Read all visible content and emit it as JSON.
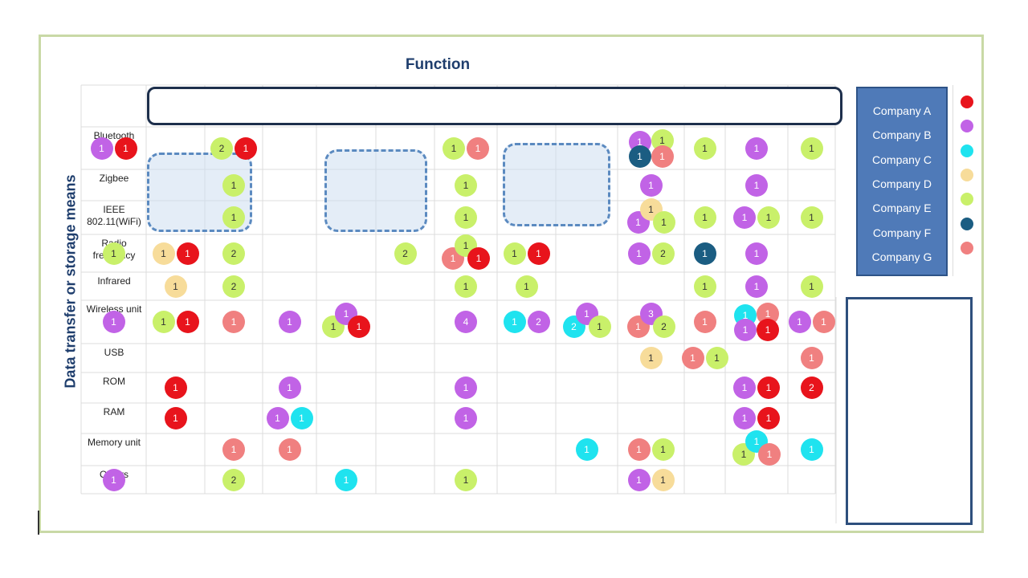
{
  "title": "Function",
  "y_axis_label": "Data transfer or storage means",
  "rows": [
    "Bluetooth",
    "Zigbee",
    "IEEE 802.11(WiFi)",
    "Radio frequency",
    "Infrared",
    "Wireless unit",
    "USB",
    "ROM",
    "RAM",
    "Memory unit",
    "Others"
  ],
  "legend": [
    {
      "label": "Company A",
      "color": "#e8141c"
    },
    {
      "label": "Company B",
      "color": "#c163e6"
    },
    {
      "label": "Company C",
      "color": "#1fe3ef"
    },
    {
      "label": "Company D",
      "color": "#f7dc9a"
    },
    {
      "label": "Company E",
      "color": "#c9f06a"
    },
    {
      "label": "Company F",
      "color": "#1b5d82"
    },
    {
      "label": "Company G",
      "color": "#f08080"
    }
  ],
  "bubbles": [
    {
      "row": "Bluetooth",
      "col": 1,
      "company": "B",
      "count": "1"
    },
    {
      "row": "Bluetooth",
      "col": 1,
      "company": "A",
      "count": "1"
    },
    {
      "row": "Bluetooth",
      "col": 3,
      "company": "E",
      "count": "2"
    },
    {
      "row": "Bluetooth",
      "col": 3,
      "company": "A",
      "count": "1"
    },
    {
      "row": "Bluetooth",
      "col": 7,
      "company": "E",
      "count": "1"
    },
    {
      "row": "Bluetooth",
      "col": 7,
      "company": "G",
      "count": "1"
    },
    {
      "row": "Bluetooth",
      "col": 10,
      "company": "B",
      "count": "1"
    },
    {
      "row": "Bluetooth",
      "col": 10,
      "company": "E",
      "count": "1"
    },
    {
      "row": "Bluetooth",
      "col": 10,
      "company": "F",
      "count": "1"
    },
    {
      "row": "Bluetooth",
      "col": 10,
      "company": "G",
      "count": "1"
    },
    {
      "row": "Bluetooth",
      "col": 11,
      "company": "E",
      "count": "1"
    },
    {
      "row": "Bluetooth",
      "col": 12,
      "company": "B",
      "count": "1"
    },
    {
      "row": "Bluetooth",
      "col": 13,
      "company": "E",
      "count": "1"
    },
    {
      "row": "Zigbee",
      "col": 3,
      "company": "E",
      "count": "1"
    },
    {
      "row": "Zigbee",
      "col": 7,
      "company": "E",
      "count": "1"
    },
    {
      "row": "Zigbee",
      "col": 10,
      "company": "B",
      "count": "1"
    },
    {
      "row": "Zigbee",
      "col": 12,
      "company": "B",
      "count": "1"
    },
    {
      "row": "IEEE 802.11(WiFi)",
      "col": 3,
      "company": "E",
      "count": "1"
    },
    {
      "row": "IEEE 802.11(WiFi)",
      "col": 7,
      "company": "E",
      "count": "1"
    },
    {
      "row": "IEEE 802.11(WiFi)",
      "col": 10,
      "company": "B",
      "count": "1"
    },
    {
      "row": "IEEE 802.11(WiFi)",
      "col": 10,
      "company": "D",
      "count": "1"
    },
    {
      "row": "IEEE 802.11(WiFi)",
      "col": 10,
      "company": "E",
      "count": "1"
    },
    {
      "row": "IEEE 802.11(WiFi)",
      "col": 11,
      "company": "E",
      "count": "1"
    },
    {
      "row": "IEEE 802.11(WiFi)",
      "col": 12,
      "company": "B",
      "count": "1"
    },
    {
      "row": "IEEE 802.11(WiFi)",
      "col": 12,
      "company": "E",
      "count": "1"
    },
    {
      "row": "IEEE 802.11(WiFi)",
      "col": 13,
      "company": "E",
      "count": "1"
    },
    {
      "row": "Radio frequency",
      "col": 1,
      "company": "E",
      "count": "1"
    },
    {
      "row": "Radio frequency",
      "col": 2,
      "company": "D",
      "count": "1"
    },
    {
      "row": "Radio frequency",
      "col": 2,
      "company": "A",
      "count": "1"
    },
    {
      "row": "Radio frequency",
      "col": 3,
      "company": "E",
      "count": "2"
    },
    {
      "row": "Radio frequency",
      "col": 6,
      "company": "E",
      "count": "2"
    },
    {
      "row": "Radio frequency",
      "col": 7,
      "company": "G",
      "count": "1"
    },
    {
      "row": "Radio frequency",
      "col": 7,
      "company": "E",
      "count": "1"
    },
    {
      "row": "Radio frequency",
      "col": 7,
      "company": "A",
      "count": "1"
    },
    {
      "row": "Radio frequency",
      "col": 8,
      "company": "E",
      "count": "1"
    },
    {
      "row": "Radio frequency",
      "col": 8,
      "company": "A",
      "count": "1"
    },
    {
      "row": "Radio frequency",
      "col": 10,
      "company": "B",
      "count": "1"
    },
    {
      "row": "Radio frequency",
      "col": 10,
      "company": "E",
      "count": "2"
    },
    {
      "row": "Radio frequency",
      "col": 11,
      "company": "F",
      "count": "1"
    },
    {
      "row": "Radio frequency",
      "col": 12,
      "company": "B",
      "count": "1"
    },
    {
      "row": "Infrared",
      "col": 2,
      "company": "D",
      "count": "1"
    },
    {
      "row": "Infrared",
      "col": 3,
      "company": "E",
      "count": "2"
    },
    {
      "row": "Infrared",
      "col": 7,
      "company": "E",
      "count": "1"
    },
    {
      "row": "Infrared",
      "col": 8,
      "company": "E",
      "count": "1"
    },
    {
      "row": "Infrared",
      "col": 11,
      "company": "E",
      "count": "1"
    },
    {
      "row": "Infrared",
      "col": 12,
      "company": "B",
      "count": "1"
    },
    {
      "row": "Infrared",
      "col": 13,
      "company": "E",
      "count": "1"
    },
    {
      "row": "Wireless unit",
      "col": 1,
      "company": "B",
      "count": "1"
    },
    {
      "row": "Wireless unit",
      "col": 2,
      "company": "E",
      "count": "1"
    },
    {
      "row": "Wireless unit",
      "col": 2,
      "company": "A",
      "count": "1"
    },
    {
      "row": "Wireless unit",
      "col": 3,
      "company": "G",
      "count": "1"
    },
    {
      "row": "Wireless unit",
      "col": 4,
      "company": "B",
      "count": "1"
    },
    {
      "row": "Wireless unit",
      "col": 5,
      "company": "E",
      "count": "1"
    },
    {
      "row": "Wireless unit",
      "col": 5,
      "company": "B",
      "count": "1"
    },
    {
      "row": "Wireless unit",
      "col": 5,
      "company": "A",
      "count": "1"
    },
    {
      "row": "Wireless unit",
      "col": 7,
      "company": "B",
      "count": "4"
    },
    {
      "row": "Wireless unit",
      "col": 8,
      "company": "C",
      "count": "1"
    },
    {
      "row": "Wireless unit",
      "col": 8,
      "company": "B",
      "count": "2"
    },
    {
      "row": "Wireless unit",
      "col": 9,
      "company": "C",
      "count": "2"
    },
    {
      "row": "Wireless unit",
      "col": 9,
      "company": "B",
      "count": "1"
    },
    {
      "row": "Wireless unit",
      "col": 9,
      "company": "E",
      "count": "1"
    },
    {
      "row": "Wireless unit",
      "col": 10,
      "company": "G",
      "count": "1"
    },
    {
      "row": "Wireless unit",
      "col": 10,
      "company": "B",
      "count": "3"
    },
    {
      "row": "Wireless unit",
      "col": 10,
      "company": "E",
      "count": "2"
    },
    {
      "row": "Wireless unit",
      "col": 11,
      "company": "G",
      "count": "1"
    },
    {
      "row": "Wireless unit",
      "col": 12,
      "company": "C",
      "count": "1"
    },
    {
      "row": "Wireless unit",
      "col": 12,
      "company": "G",
      "count": "1"
    },
    {
      "row": "Wireless unit",
      "col": 12,
      "company": "B",
      "count": "1"
    },
    {
      "row": "Wireless unit",
      "col": 12,
      "company": "A",
      "count": "1"
    },
    {
      "row": "Wireless unit",
      "col": 13,
      "company": "B",
      "count": "1"
    },
    {
      "row": "Wireless unit",
      "col": 13,
      "company": "G",
      "count": "1"
    },
    {
      "row": "USB",
      "col": 10,
      "company": "D",
      "count": "1"
    },
    {
      "row": "USB",
      "col": 11,
      "company": "G",
      "count": "1"
    },
    {
      "row": "USB",
      "col": 11,
      "company": "E",
      "count": "1"
    },
    {
      "row": "USB",
      "col": 13,
      "company": "G",
      "count": "1"
    },
    {
      "row": "ROM",
      "col": 2,
      "company": "A",
      "count": "1"
    },
    {
      "row": "ROM",
      "col": 4,
      "company": "B",
      "count": "1"
    },
    {
      "row": "ROM",
      "col": 7,
      "company": "B",
      "count": "1"
    },
    {
      "row": "ROM",
      "col": 12,
      "company": "B",
      "count": "1"
    },
    {
      "row": "ROM",
      "col": 12,
      "company": "A",
      "count": "1"
    },
    {
      "row": "ROM",
      "col": 13,
      "company": "A",
      "count": "2"
    },
    {
      "row": "RAM",
      "col": 2,
      "company": "A",
      "count": "1"
    },
    {
      "row": "RAM",
      "col": 4,
      "company": "B",
      "count": "1"
    },
    {
      "row": "RAM",
      "col": 4,
      "company": "C",
      "count": "1"
    },
    {
      "row": "RAM",
      "col": 7,
      "company": "B",
      "count": "1"
    },
    {
      "row": "RAM",
      "col": 12,
      "company": "B",
      "count": "1"
    },
    {
      "row": "RAM",
      "col": 12,
      "company": "A",
      "count": "1"
    },
    {
      "row": "Memory unit",
      "col": 3,
      "company": "G",
      "count": "1"
    },
    {
      "row": "Memory unit",
      "col": 4,
      "company": "G",
      "count": "1"
    },
    {
      "row": "Memory unit",
      "col": 9,
      "company": "C",
      "count": "1"
    },
    {
      "row": "Memory unit",
      "col": 10,
      "company": "G",
      "count": "1"
    },
    {
      "row": "Memory unit",
      "col": 10,
      "company": "E",
      "count": "1"
    },
    {
      "row": "Memory unit",
      "col": 12,
      "company": "E",
      "count": "1"
    },
    {
      "row": "Memory unit",
      "col": 12,
      "company": "C",
      "count": "1"
    },
    {
      "row": "Memory unit",
      "col": 12,
      "company": "G",
      "count": "1"
    },
    {
      "row": "Memory unit",
      "col": 13,
      "company": "C",
      "count": "1"
    },
    {
      "row": "Others",
      "col": 1,
      "company": "B",
      "count": "1"
    },
    {
      "row": "Others",
      "col": 3,
      "company": "E",
      "count": "2"
    },
    {
      "row": "Others",
      "col": 5,
      "company": "C",
      "count": "1"
    },
    {
      "row": "Others",
      "col": 7,
      "company": "E",
      "count": "1"
    },
    {
      "row": "Others",
      "col": 10,
      "company": "B",
      "count": "1"
    },
    {
      "row": "Others",
      "col": 10,
      "company": "D",
      "count": "1"
    }
  ]
}
